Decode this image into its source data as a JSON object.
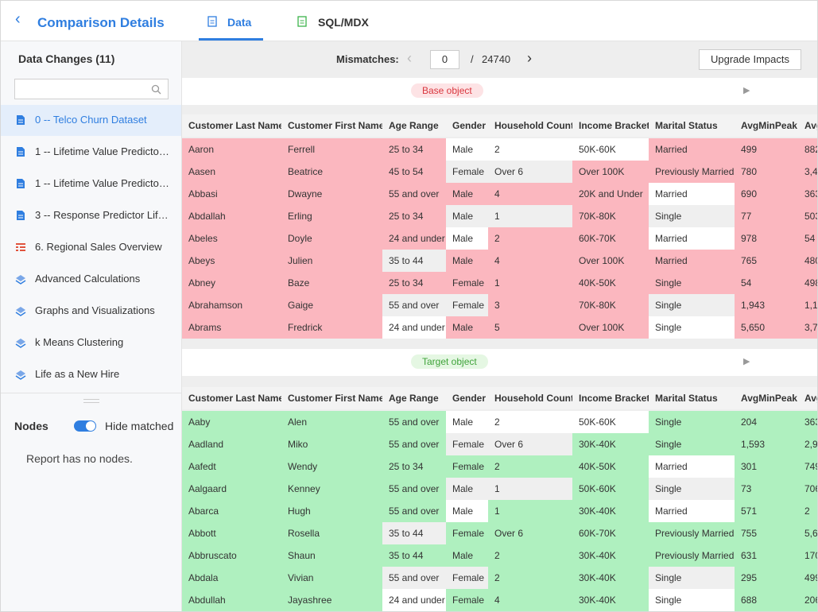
{
  "header": {
    "title": "Comparison Details",
    "tabs": [
      "Data",
      "SQL/MDX"
    ]
  },
  "sidebar": {
    "title": "Data Changes (11)",
    "items": [
      "0 -- Telco Churn Dataset",
      "1 -- Lifetime Value Predicto…",
      "1 -- Lifetime Value Predicto…",
      "3 -- Response Predictor Lif…",
      "6. Regional Sales Overview",
      "Advanced Calculations",
      "Graphs and Visualizations",
      "k Means Clustering",
      "Life as a New Hire"
    ],
    "nodes_label": "Nodes",
    "toggle_label": "Hide matched",
    "empty_message": "Report has no nodes."
  },
  "toolbar": {
    "mismatches_label": "Mismatches:",
    "current": 0,
    "separator": "/",
    "total": 24740,
    "button": "Upgrade Impacts"
  },
  "tables": [
    {
      "label": "Base object",
      "columns": [
        "Customer Last Name",
        "Customer First Name",
        "Age Range",
        "Gender",
        "Household Count",
        "Income Bracket",
        "Marital Status",
        "AvgMinPeak",
        "Avg"
      ],
      "rows": [
        [
          "Aaron",
          "Ferrell",
          "25 to 34",
          "Male",
          "2",
          "50K-60K",
          "Married",
          "499",
          "882"
        ],
        [
          "Aasen",
          "Beatrice",
          "45 to 54",
          "Female",
          "Over 6",
          "Over 100K",
          "Previously Married",
          "780",
          "3,4"
        ],
        [
          "Abbasi",
          "Dwayne",
          "55 and over",
          "Male",
          "4",
          "20K and Under",
          "Married",
          "690",
          "363"
        ],
        [
          "Abdallah",
          "Erling",
          "25 to 34",
          "Male",
          "1",
          "70K-80K",
          "Single",
          "77",
          "503"
        ],
        [
          "Abeles",
          "Doyle",
          "24 and under",
          "Male",
          "2",
          "60K-70K",
          "Married",
          "978",
          "54"
        ],
        [
          "Abeys",
          "Julien",
          "35 to 44",
          "Male",
          "4",
          "Over 100K",
          "Married",
          "765",
          "480"
        ],
        [
          "Abney",
          "Baze",
          "25 to 34",
          "Female",
          "1",
          "40K-50K",
          "Single",
          "54",
          "498"
        ],
        [
          "Abrahamson",
          "Gaige",
          "55 and over",
          "Female",
          "3",
          "70K-80K",
          "Single",
          "1,943",
          "1,1"
        ],
        [
          "Abrams",
          "Fredrick",
          "24 and under",
          "Male",
          "5",
          "Over 100K",
          "Single",
          "5,650",
          "3,7"
        ]
      ]
    },
    {
      "label": "Target object",
      "columns": [
        "Customer Last Name",
        "Customer First Name",
        "Age Range",
        "Gender",
        "Household Count",
        "Income Bracket",
        "Marital Status",
        "AvgMinPeak",
        "Avg"
      ],
      "rows": [
        [
          "Aaby",
          "Alen",
          "55 and over",
          "Male",
          "2",
          "50K-60K",
          "Single",
          "204",
          "363"
        ],
        [
          "Aadland",
          "Miko",
          "55 and over",
          "Female",
          "Over 6",
          "30K-40K",
          "Single",
          "1,593",
          "2,9"
        ],
        [
          "Aafedt",
          "Wendy",
          "25 to 34",
          "Female",
          "2",
          "40K-50K",
          "Married",
          "301",
          "749"
        ],
        [
          "Aalgaard",
          "Kenney",
          "55 and over",
          "Male",
          "1",
          "50K-60K",
          "Single",
          "73",
          "706"
        ],
        [
          "Abarca",
          "Hugh",
          "55 and over",
          "Male",
          "1",
          "30K-40K",
          "Married",
          "571",
          "2"
        ],
        [
          "Abbott",
          "Rosella",
          "35 to 44",
          "Female",
          "Over 6",
          "60K-70K",
          "Previously Married",
          "755",
          "5,6"
        ],
        [
          "Abbruscato",
          "Shaun",
          "35 to 44",
          "Male",
          "2",
          "30K-40K",
          "Previously Married",
          "631",
          "170"
        ],
        [
          "Abdala",
          "Vivian",
          "55 and over",
          "Female",
          "2",
          "30K-40K",
          "Single",
          "295",
          "499"
        ],
        [
          "Abdullah",
          "Jayashree",
          "24 and under",
          "Female",
          "4",
          "30K-40K",
          "Single",
          "688",
          "206"
        ]
      ]
    }
  ]
}
